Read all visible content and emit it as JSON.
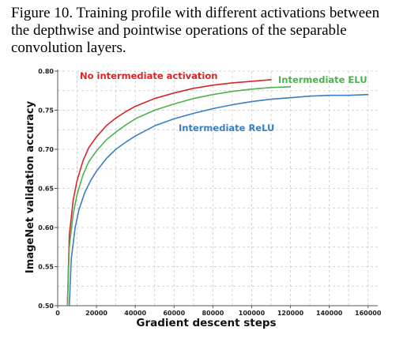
{
  "caption": "Figure 10. Training profile with different activations between the depthwise and pointwise operations of the separable convolution layers.",
  "chart_data": {
    "type": "line",
    "title": "",
    "xlabel": "Gradient descent steps",
    "ylabel": "ImageNet validation accuracy",
    "xlim": [
      0,
      165000
    ],
    "ylim": [
      0.5,
      0.8
    ],
    "xticks": [
      0,
      20000,
      40000,
      60000,
      80000,
      100000,
      120000,
      140000,
      160000
    ],
    "xtick_labels": [
      "0",
      "20000",
      "40000",
      "60000",
      "80000",
      "100000",
      "120000",
      "140000",
      "160000"
    ],
    "yticks": [
      0.5,
      0.55,
      0.6,
      0.65,
      0.7,
      0.75,
      0.8
    ],
    "ytick_labels": [
      "0.50",
      "0.55",
      "0.60",
      "0.65",
      "0.70",
      "0.75",
      "0.80"
    ],
    "grid": true,
    "series": [
      {
        "name": "No intermediate activation",
        "color": "#d62728",
        "x": [
          5000,
          6000,
          8000,
          10000,
          13000,
          16000,
          20000,
          25000,
          30000,
          35000,
          40000,
          50000,
          60000,
          70000,
          80000,
          90000,
          100000,
          105000,
          110000
        ],
        "y": [
          0.5,
          0.59,
          0.635,
          0.66,
          0.685,
          0.702,
          0.716,
          0.73,
          0.74,
          0.748,
          0.755,
          0.765,
          0.772,
          0.778,
          0.782,
          0.785,
          0.787,
          0.788,
          0.789
        ]
      },
      {
        "name": "Intermediate ELU",
        "color": "#4db24d",
        "x": [
          5000,
          6000,
          8000,
          10000,
          13000,
          16000,
          20000,
          25000,
          30000,
          35000,
          40000,
          50000,
          60000,
          70000,
          80000,
          90000,
          100000,
          110000,
          120000
        ],
        "y": [
          0.5,
          0.575,
          0.617,
          0.642,
          0.667,
          0.684,
          0.698,
          0.712,
          0.722,
          0.731,
          0.739,
          0.75,
          0.758,
          0.765,
          0.77,
          0.774,
          0.777,
          0.779,
          0.78
        ]
      },
      {
        "name": "Intermediate ReLU",
        "color": "#3a7fbf",
        "x": [
          6000,
          7000,
          9000,
          11000,
          14000,
          17000,
          20000,
          25000,
          30000,
          35000,
          40000,
          50000,
          60000,
          70000,
          80000,
          90000,
          100000,
          110000,
          120000,
          130000,
          140000,
          150000,
          160000
        ],
        "y": [
          0.5,
          0.56,
          0.6,
          0.623,
          0.645,
          0.66,
          0.672,
          0.688,
          0.7,
          0.709,
          0.717,
          0.73,
          0.739,
          0.746,
          0.752,
          0.757,
          0.761,
          0.764,
          0.766,
          0.768,
          0.769,
          0.769,
          0.77
        ]
      }
    ],
    "annotations": [
      {
        "text": "No intermediate activation",
        "series": 0
      },
      {
        "text": "Intermediate ELU",
        "series": 1
      },
      {
        "text": "Intermediate ReLU",
        "series": 2
      }
    ]
  }
}
